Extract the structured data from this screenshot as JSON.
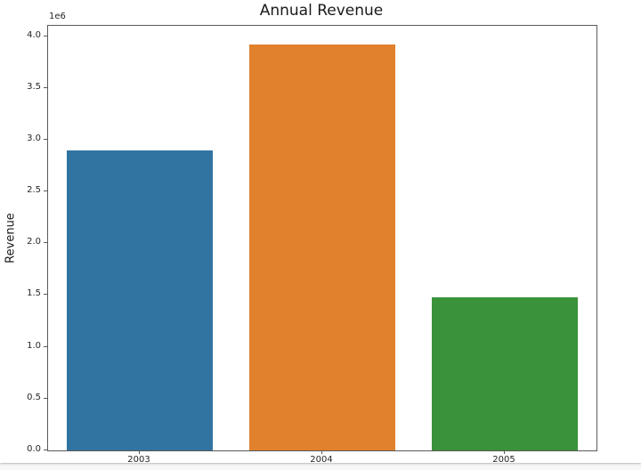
{
  "figure": {
    "background": "#ffffff",
    "page_background": "#f7f7f7"
  },
  "chart_data": {
    "type": "bar",
    "title": "Annual Revenue",
    "xlabel": "",
    "ylabel": "Revenue",
    "y_scale_label": "1e6",
    "categories": [
      "2003",
      "2004",
      "2005"
    ],
    "values": [
      2900000,
      3920000,
      1480000
    ],
    "bar_colors": [
      "#3274a1",
      "#e1812c",
      "#3a923a"
    ],
    "ylim": [
      0,
      4100000
    ],
    "ytick_values": [
      0,
      500000,
      1000000,
      1500000,
      2000000,
      2500000,
      3000000,
      3500000,
      4000000
    ],
    "ytick_labels": [
      "0.0",
      "0.5",
      "1.0",
      "1.5",
      "2.0",
      "2.5",
      "3.0",
      "3.5",
      "4.0"
    ],
    "grid": false,
    "legend": null,
    "bar_width_fraction": 0.8
  }
}
